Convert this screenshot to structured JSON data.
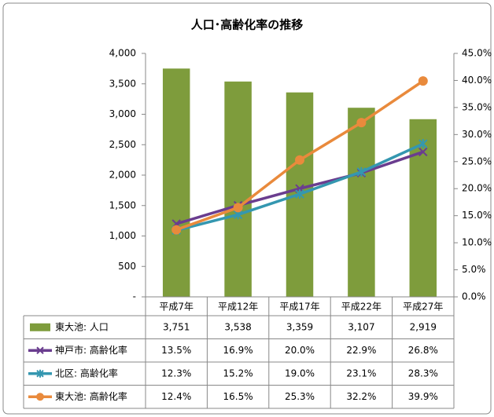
{
  "chart_data": {
    "type": "combo",
    "title": "人口･高齢化率の推移",
    "categories": [
      "平成7年",
      "平成12年",
      "平成17年",
      "平成22年",
      "平成27年"
    ],
    "ylim": [
      0,
      4000
    ],
    "yticks": [
      {
        "value": 0,
        "label": "-"
      },
      500,
      {
        "value": 1000,
        "label": "1,000"
      },
      {
        "value": 1500,
        "label": "1,500"
      },
      {
        "value": 2000,
        "label": "2,000"
      },
      {
        "value": 2500,
        "label": "2,500"
      },
      {
        "value": 3000,
        "label": "3,000"
      },
      {
        "value": 3500,
        "label": "3,500"
      },
      {
        "value": 4000,
        "label": "4,000"
      }
    ],
    "y2lim": [
      0,
      45
    ],
    "y2ticks": [
      {
        "value": 0,
        "label": "0.0%"
      },
      {
        "value": 5,
        "label": "5.0%"
      },
      {
        "value": 10,
        "label": "10.0%"
      },
      {
        "value": 15,
        "label": "15.0%"
      },
      {
        "value": 20,
        "label": "20.0%"
      },
      {
        "value": 25,
        "label": "25.0%"
      },
      {
        "value": 30,
        "label": "30.0%"
      },
      {
        "value": 35,
        "label": "35.0%"
      },
      {
        "value": 40,
        "label": "40.0%"
      },
      {
        "value": 45,
        "label": "45.0%"
      }
    ],
    "grid": false,
    "series": [
      {
        "name": "東大池: 人口",
        "type": "bar",
        "color": "#7e9c3c",
        "values": [
          3751,
          3538,
          3359,
          3107,
          2919
        ],
        "value_labels": [
          "3,751",
          "3,538",
          "3,359",
          "3,107",
          "2,919"
        ]
      },
      {
        "name": "神戸市: 高齢化率",
        "type": "line",
        "axis": "y2",
        "marker": "x",
        "color": "#6a3d8f",
        "values": [
          13.5,
          16.9,
          20.0,
          22.9,
          26.8
        ],
        "value_labels": [
          "13.5%",
          "16.9%",
          "20.0%",
          "22.9%",
          "26.8%"
        ]
      },
      {
        "name": "北区: 高齢化率",
        "type": "line",
        "axis": "y2",
        "marker": "star",
        "color": "#3497b0",
        "values": [
          12.3,
          15.2,
          19.0,
          23.1,
          28.3
        ],
        "value_labels": [
          "12.3%",
          "15.2%",
          "19.0%",
          "23.1%",
          "28.3%"
        ]
      },
      {
        "name": "東大池: 高齢化率",
        "type": "line",
        "axis": "y2",
        "marker": "circle",
        "color": "#e98a3c",
        "values": [
          12.4,
          16.5,
          25.3,
          32.2,
          39.9
        ],
        "value_labels": [
          "12.4%",
          "16.5%",
          "25.3%",
          "32.2%",
          "39.9%"
        ]
      }
    ]
  }
}
